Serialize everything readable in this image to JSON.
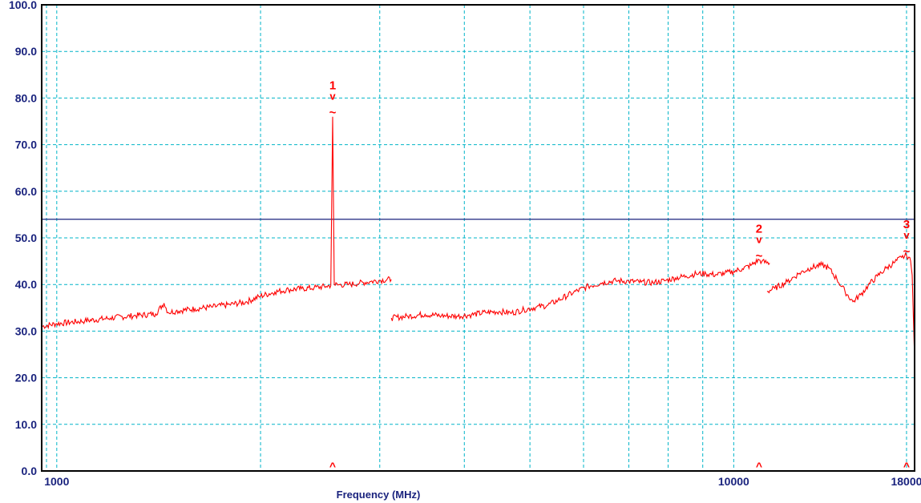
{
  "chart_data": {
    "type": "line",
    "xlabel": "Frequency (MHz)",
    "xscale": "log",
    "xlim": [
      950,
      18500
    ],
    "ylim": [
      0,
      100
    ],
    "grid": true,
    "colors": {
      "trace": "#ff0000",
      "limit": "#1a237e",
      "grid": "#00b4c8",
      "frame": "#000000",
      "label": "#1a237e",
      "marker": "#ff0000"
    },
    "yticks": [
      "0.0",
      "10.0",
      "20.0",
      "30.0",
      "40.0",
      "50.0",
      "60.0",
      "70.0",
      "80.0",
      "90.0",
      "100.0"
    ],
    "xticks": [
      {
        "value": 1000,
        "label": "1000"
      },
      {
        "value": 10000,
        "label": "10000"
      },
      {
        "value": 18000,
        "label": "18000"
      }
    ],
    "limit_line": {
      "y": 54
    },
    "series": [
      {
        "color": "#ff0000",
        "segments": [
          [
            [
              950,
              31.0
            ],
            [
              1000,
              31.6
            ],
            [
              1100,
              32.2
            ],
            [
              1200,
              32.8
            ],
            [
              1300,
              33.3
            ],
            [
              1400,
              33.7
            ],
            [
              1440,
              36.0
            ],
            [
              1460,
              34.0
            ],
            [
              1500,
              34.3
            ],
            [
              1600,
              34.8
            ],
            [
              1700,
              35.2
            ],
            [
              1800,
              35.7
            ],
            [
              1900,
              36.2
            ],
            [
              2000,
              37.5
            ],
            [
              2100,
              38.4
            ],
            [
              2200,
              38.9
            ],
            [
              2300,
              39.1
            ],
            [
              2400,
              39.3
            ],
            [
              2500,
              39.6
            ],
            [
              2540,
              39.8
            ],
            [
              2556,
              76.0
            ],
            [
              2570,
              40.0
            ],
            [
              2600,
              39.9
            ],
            [
              2700,
              40.0
            ],
            [
              2800,
              40.3
            ],
            [
              2900,
              40.6
            ],
            [
              3000,
              40.9
            ],
            [
              3120,
              41.1
            ]
          ],
          [
            [
              3120,
              32.8
            ],
            [
              3300,
              33.2
            ],
            [
              3500,
              33.6
            ],
            [
              3700,
              33.3
            ],
            [
              3900,
              33.2
            ],
            [
              4100,
              33.5
            ],
            [
              4300,
              34.0
            ],
            [
              4500,
              34.2
            ],
            [
              4700,
              33.9
            ],
            [
              4900,
              34.6
            ],
            [
              5100,
              35.1
            ],
            [
              5300,
              35.5
            ],
            [
              5500,
              36.6
            ],
            [
              5800,
              38.3
            ],
            [
              6100,
              39.6
            ],
            [
              6400,
              40.4
            ],
            [
              6700,
              40.8
            ],
            [
              7000,
              40.7
            ],
            [
              7300,
              40.5
            ],
            [
              7600,
              40.4
            ],
            [
              7900,
              40.8
            ],
            [
              8200,
              41.4
            ],
            [
              8500,
              41.8
            ],
            [
              8800,
              42.3
            ],
            [
              9100,
              42.3
            ],
            [
              9400,
              42.1
            ],
            [
              9700,
              42.4
            ],
            [
              10000,
              42.8
            ],
            [
              10300,
              43.4
            ],
            [
              10600,
              44.1
            ],
            [
              10900,
              45.3
            ],
            [
              11000,
              44.9
            ],
            [
              11300,
              44.6
            ]
          ],
          [
            [
              11200,
              38.5
            ],
            [
              11500,
              39.2
            ],
            [
              12000,
              40.6
            ],
            [
              12500,
              42.4
            ],
            [
              13000,
              43.6
            ],
            [
              13500,
              44.2
            ],
            [
              13800,
              43.6
            ],
            [
              14200,
              41.2
            ],
            [
              14600,
              38.5
            ],
            [
              15000,
              36.3
            ],
            [
              15400,
              37.8
            ],
            [
              15800,
              39.8
            ],
            [
              16300,
              41.8
            ],
            [
              16800,
              43.5
            ],
            [
              17300,
              44.8
            ],
            [
              17700,
              45.8
            ],
            [
              18000,
              46.2
            ],
            [
              18200,
              45.8
            ],
            [
              18350,
              42.0
            ],
            [
              18500,
              24.0
            ]
          ]
        ]
      }
    ],
    "markers": [
      {
        "label": "1",
        "x": 2556,
        "y": 76.0
      },
      {
        "label": "2",
        "x": 10900,
        "y": 45.3
      },
      {
        "label": "3",
        "x": 18000,
        "y": 46.2
      }
    ],
    "marker_glyphs": {
      "top": "v",
      "bottom": "~",
      "axis": "^"
    }
  }
}
